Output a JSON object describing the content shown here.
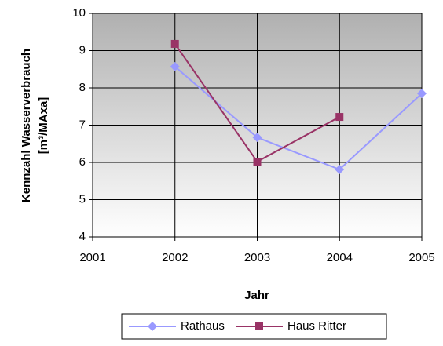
{
  "chart_data": {
    "type": "line",
    "xlabel": "Jahr",
    "ylabel": [
      "Kennzahl Wasserverbrauch",
      "[m³/MAxa]"
    ],
    "xlim": [
      2001,
      2005
    ],
    "xticks": [
      2001,
      2002,
      2003,
      2004,
      2005
    ],
    "ylim": [
      4,
      10
    ],
    "yticks": [
      4,
      5,
      6,
      7,
      8,
      9,
      10
    ],
    "grid": true,
    "legend": "bottom",
    "series": [
      {
        "name": "Rathaus",
        "color": "#9999ff",
        "marker": "diamond",
        "x": [
          2002,
          2003,
          2004,
          2005
        ],
        "values": [
          8.57,
          6.67,
          5.81,
          7.85
        ]
      },
      {
        "name": "Haus Ritter",
        "color": "#993366",
        "marker": "square",
        "x": [
          2002,
          2003,
          2004
        ],
        "values": [
          9.18,
          6.02,
          7.22
        ]
      }
    ]
  }
}
